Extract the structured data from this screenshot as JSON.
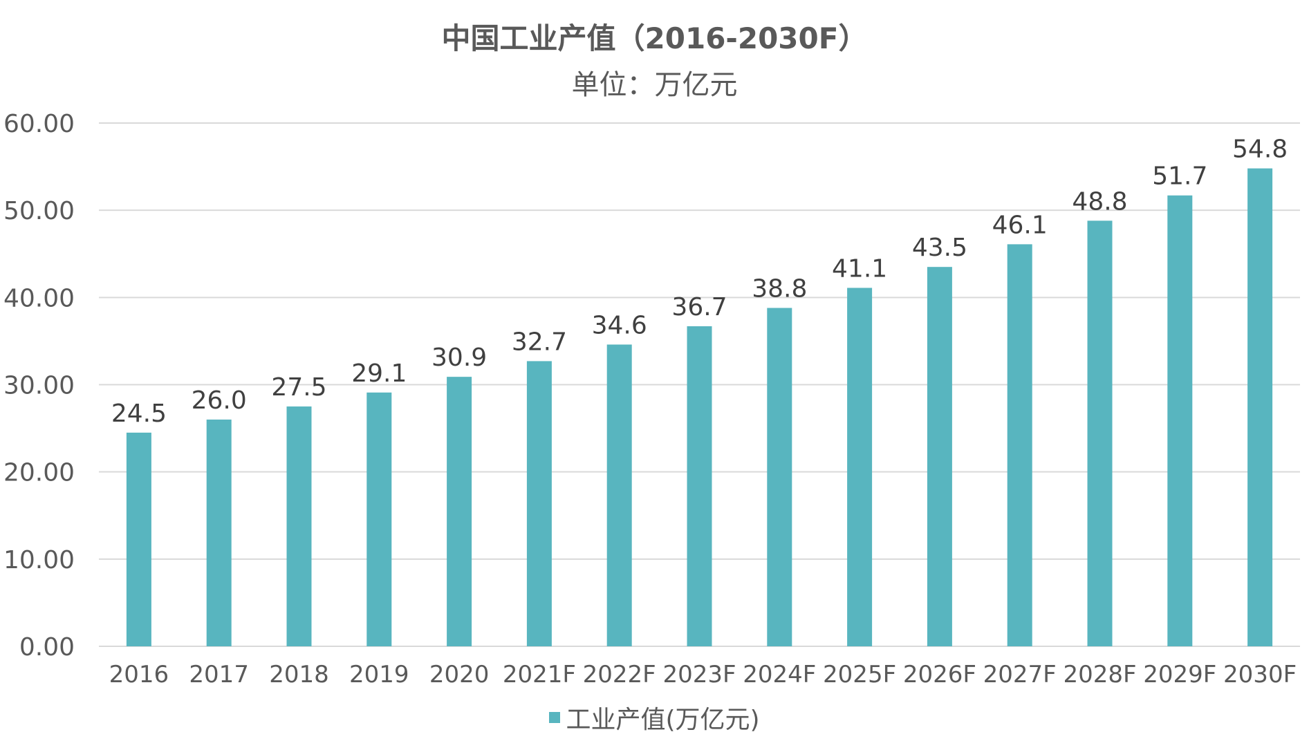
{
  "chart_data": {
    "type": "bar",
    "title": "中国工业产值（2016-2030F）",
    "subtitle": "单位：万亿元",
    "categories": [
      "2016",
      "2017",
      "2018",
      "2019",
      "2020",
      "2021F",
      "2022F",
      "2023F",
      "2024F",
      "2025F",
      "2026F",
      "2027F",
      "2028F",
      "2029F",
      "2030F"
    ],
    "series": [
      {
        "name": "工业产值(万亿元)",
        "values": [
          24.5,
          26.0,
          27.5,
          29.1,
          30.9,
          32.7,
          34.6,
          36.7,
          38.8,
          41.1,
          43.5,
          46.1,
          48.8,
          51.7,
          54.8
        ],
        "data_labels": [
          "24.5",
          "26.0",
          "27.5",
          "29.1",
          "30.9",
          "32.7",
          "34.6",
          "36.7",
          "38.8",
          "41.1",
          "43.5",
          "46.1",
          "48.8",
          "51.7",
          "54.8"
        ]
      }
    ],
    "ylim": [
      0,
      60
    ],
    "yticks": [
      "0.00",
      "10.00",
      "20.00",
      "30.00",
      "40.00",
      "50.00",
      "60.00"
    ],
    "grid": true,
    "legend_position": "bottom",
    "colors": {
      "bar": "#58b5bf",
      "grid": "#d9d9d9",
      "text": "#595959"
    }
  }
}
